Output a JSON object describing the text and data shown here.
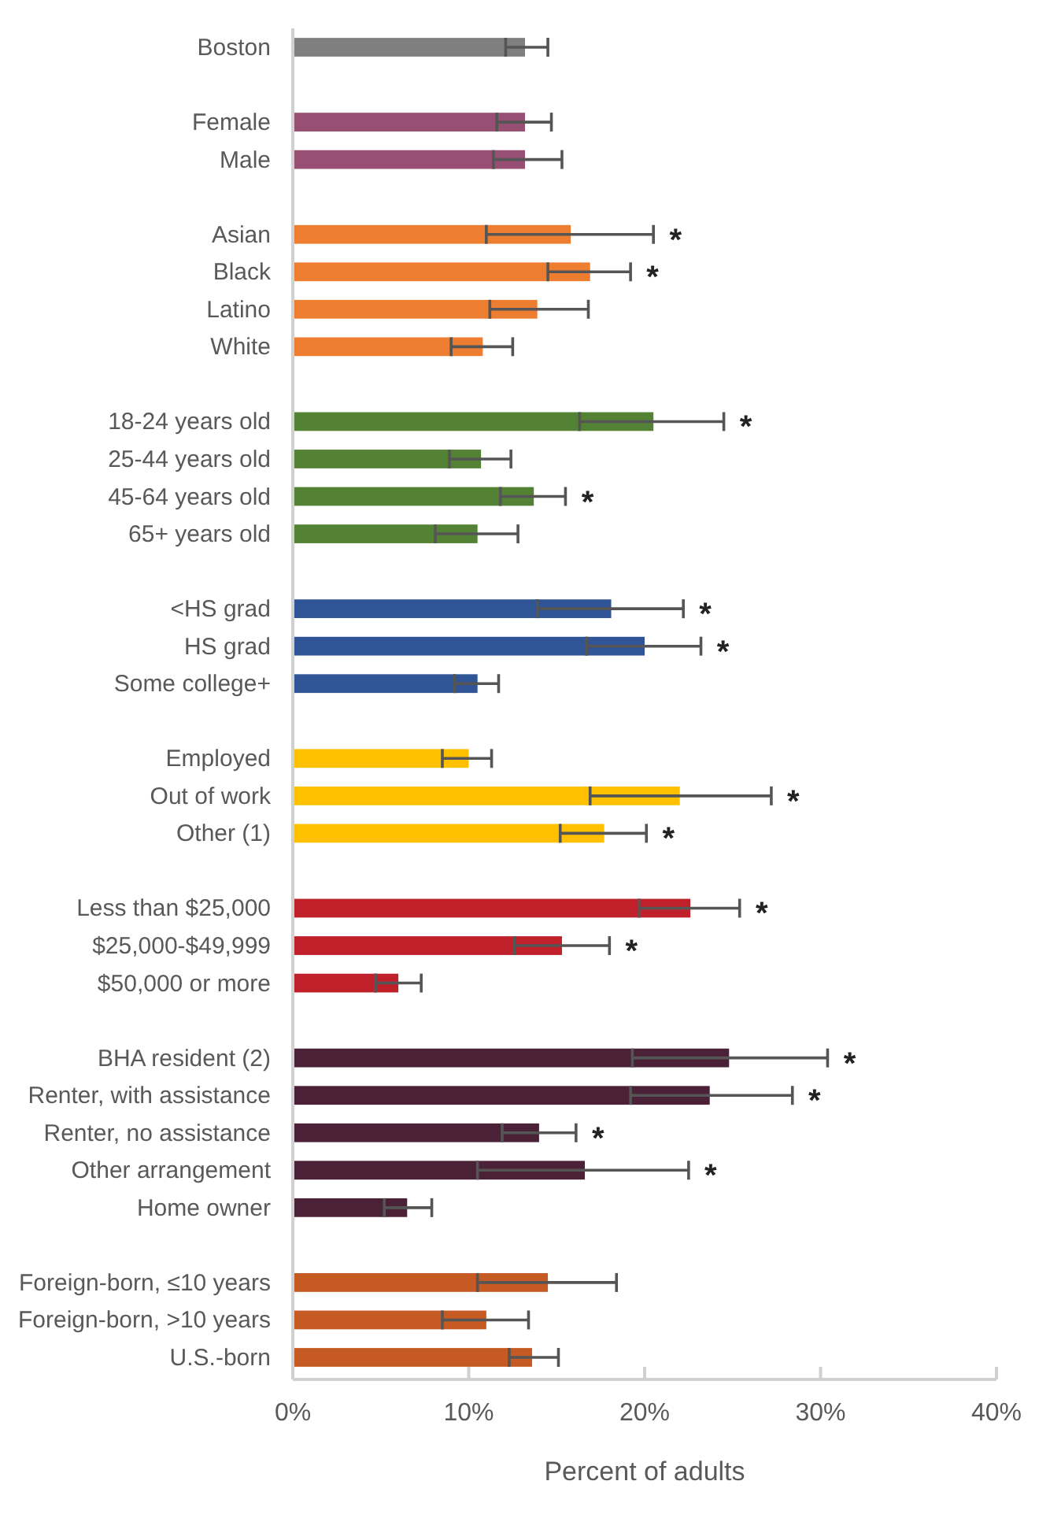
{
  "chart_data": {
    "type": "bar",
    "orientation": "horizontal",
    "xlabel": "Percent of adults",
    "categories": [
      "Boston",
      null,
      "Female",
      "Male",
      null,
      "Asian",
      "Black",
      "Latino",
      "White",
      null,
      "18-24 years old",
      "25-44 years old",
      "45-64 years old",
      "65+ years old",
      null,
      "<HS grad",
      "HS grad",
      "Some college+",
      null,
      "Employed",
      "Out of work",
      "Other (1)",
      null,
      "Less than $25,000",
      "$25,000-$49,999",
      "$50,000 or more",
      null,
      "BHA resident (2)",
      "Renter, with assistance",
      "Renter, no assistance",
      "Other arrangement",
      "Home owner",
      null,
      "Foreign-born, ≤10 years",
      "Foreign-born, >10 years",
      "U.S.-born"
    ],
    "values": [
      13.2,
      null,
      13.2,
      13.2,
      null,
      15.8,
      16.9,
      13.9,
      10.8,
      null,
      20.5,
      10.7,
      13.7,
      10.5,
      null,
      18.1,
      20.0,
      10.5,
      null,
      10.0,
      22.0,
      17.7,
      null,
      22.6,
      15.3,
      6.0,
      null,
      24.8,
      23.7,
      14.0,
      16.6,
      6.5,
      null,
      14.5,
      11.0,
      13.6
    ],
    "errors": [
      [
        12.1,
        14.5
      ],
      null,
      [
        11.6,
        14.7
      ],
      [
        11.4,
        15.3
      ],
      null,
      [
        11.0,
        20.5
      ],
      [
        14.5,
        19.2
      ],
      [
        11.2,
        16.8
      ],
      [
        9.0,
        12.5
      ],
      null,
      [
        16.3,
        24.5
      ],
      [
        8.9,
        12.4
      ],
      [
        11.8,
        15.5
      ],
      [
        8.1,
        12.8
      ],
      null,
      [
        13.9,
        22.2
      ],
      [
        16.7,
        23.2
      ],
      [
        9.2,
        11.7
      ],
      null,
      [
        8.5,
        11.3
      ],
      [
        16.9,
        27.2
      ],
      [
        15.2,
        20.1
      ],
      null,
      [
        19.7,
        25.4
      ],
      [
        12.6,
        18.0
      ],
      [
        4.7,
        7.3
      ],
      null,
      [
        19.3,
        30.4
      ],
      [
        19.2,
        28.4
      ],
      [
        11.9,
        16.1
      ],
      [
        10.5,
        22.5
      ],
      [
        5.2,
        7.9
      ],
      null,
      [
        10.5,
        18.4
      ],
      [
        8.5,
        13.4
      ],
      [
        12.3,
        15.1
      ]
    ],
    "colors": [
      "#7f7f7f",
      null,
      "#984f74",
      "#984f74",
      null,
      "#ed7d31",
      "#ed7d31",
      "#ed7d31",
      "#ed7d31",
      null,
      "#548235",
      "#548235",
      "#548235",
      "#548235",
      null,
      "#2f5597",
      "#2f5597",
      "#2f5597",
      null,
      "#ffc000",
      "#ffc000",
      "#ffc000",
      null,
      "#c0202a",
      "#c0202a",
      "#c0202a",
      null,
      "#4a2136",
      "#4a2136",
      "#4a2136",
      "#4a2136",
      "#4a2136",
      null,
      "#c55a22",
      "#c55a22",
      "#c55a22"
    ],
    "xlim": [
      0,
      40
    ],
    "xticks": [
      {
        "value": 0,
        "label": "0%"
      },
      {
        "value": 10,
        "label": "10%"
      },
      {
        "value": 20,
        "label": "20%"
      },
      {
        "value": 30,
        "label": "30%"
      },
      {
        "value": 40,
        "label": "40%"
      }
    ],
    "annotations": [
      {
        "text": "*",
        "x": 20.5,
        "y": "Asian"
      },
      {
        "text": "*",
        "x": 19.2,
        "y": "Black"
      },
      {
        "text": "*",
        "x": 24.5,
        "y": "18-24 years old"
      },
      {
        "text": "*",
        "x": 15.5,
        "y": "45-64 years old"
      },
      {
        "text": "*",
        "x": 22.2,
        "y": "<HS grad"
      },
      {
        "text": "*",
        "x": 23.2,
        "y": "HS grad"
      },
      {
        "text": "*",
        "x": 27.2,
        "y": "Out of work"
      },
      {
        "text": "*",
        "x": 20.1,
        "y": "Other (1)"
      },
      {
        "text": "*",
        "x": 25.4,
        "y": "Less than $25,000"
      },
      {
        "text": "*",
        "x": 18.0,
        "y": "$25,000-$49,999"
      },
      {
        "text": "*",
        "x": 30.4,
        "y": "BHA resident (2)"
      },
      {
        "text": "*",
        "x": 28.4,
        "y": "Renter, with assistance"
      },
      {
        "text": "*",
        "x": 16.1,
        "y": "Renter, no assistance"
      },
      {
        "text": "*",
        "x": 22.5,
        "y": "Other arrangement"
      }
    ]
  }
}
